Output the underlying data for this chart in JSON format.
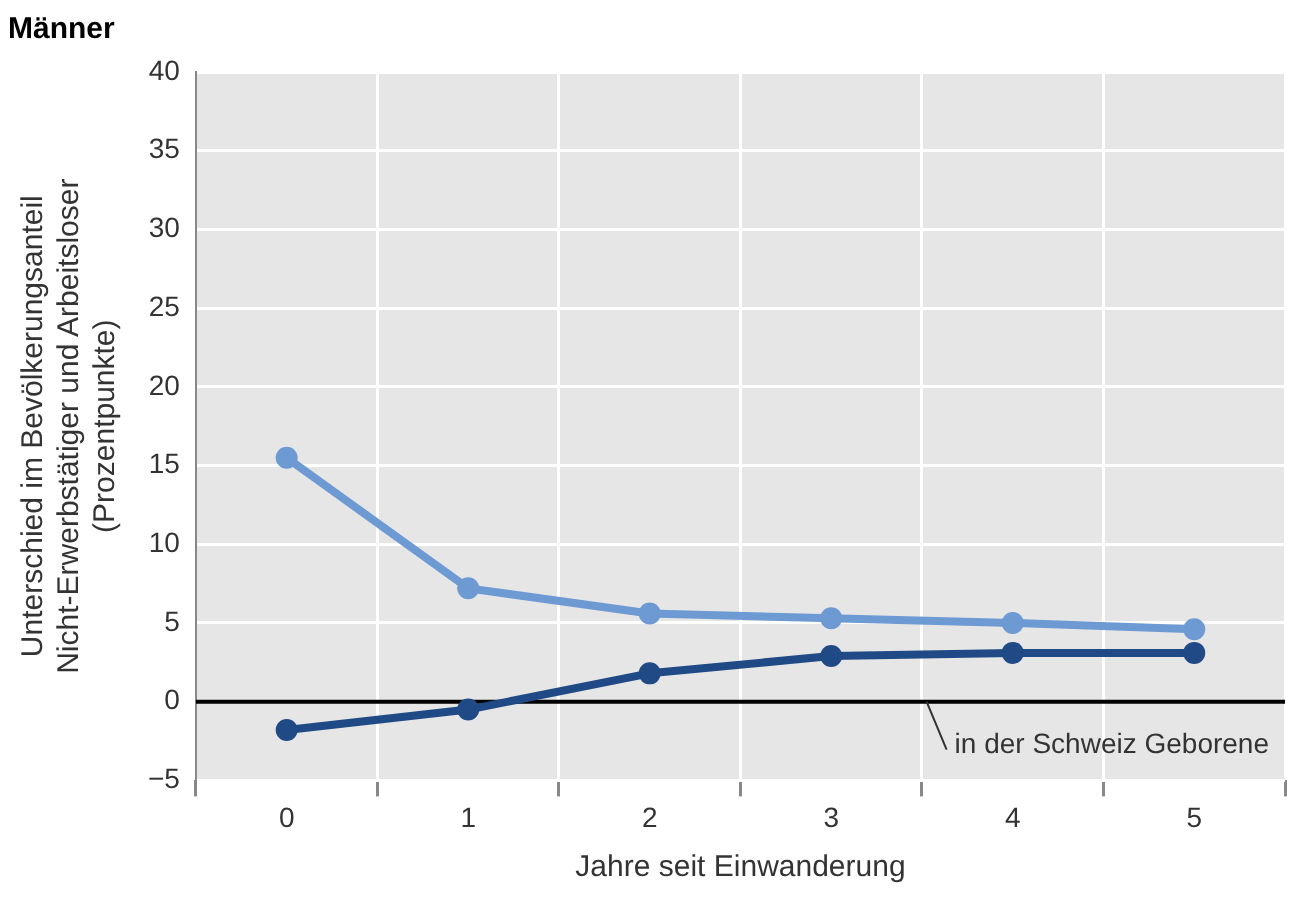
{
  "chart_data": {
    "type": "line",
    "title": "Männer",
    "xlabel": "Jahre seit Einwanderung",
    "ylabel": "Unterschied im Bevölkerungsanteil\nNicht-Erwerbstätiger und Arbeitsloser\n(Prozentpunkte)",
    "categories": [
      "0",
      "1",
      "2",
      "3",
      "4",
      "5"
    ],
    "series": [
      {
        "color": "#6e9ad4",
        "values": [
          15.5,
          7.2,
          5.6,
          5.3,
          5.0,
          4.6
        ]
      },
      {
        "color": "#1f4a85",
        "values": [
          -1.8,
          -0.5,
          1.8,
          2.9,
          3.1,
          3.1
        ]
      }
    ],
    "ylim": [
      -5,
      40
    ],
    "yticks": [
      {
        "value": -5,
        "label": "−5"
      },
      0,
      5,
      10,
      15,
      20,
      25,
      30,
      35,
      40
    ],
    "ref_lines": [
      {
        "axis": "y",
        "value": 0,
        "label": "in der Schweiz Geborene",
        "color": "#000000"
      }
    ],
    "grid": true,
    "legend": false,
    "marker": "circle",
    "line_style": "solid"
  }
}
